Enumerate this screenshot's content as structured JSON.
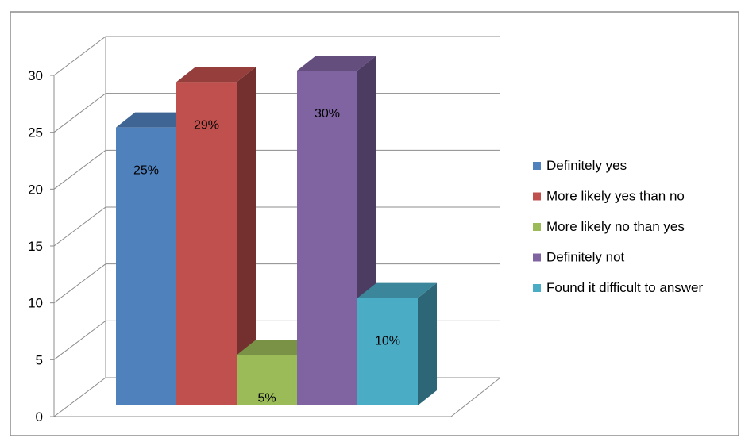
{
  "chart_data": {
    "type": "bar",
    "subtype": "3d-clustered-column",
    "title": "",
    "xlabel": "",
    "ylabel": "",
    "ylim": [
      0,
      30
    ],
    "yticks": [
      0,
      5,
      10,
      15,
      20,
      25,
      30
    ],
    "grid": true,
    "legend_position": "right",
    "series": [
      {
        "name": "Definitely yes",
        "value": 25,
        "label": "25%",
        "color": "#4F81BD"
      },
      {
        "name": "More likely yes than no",
        "value": 29,
        "label": "29%",
        "color": "#C0504D"
      },
      {
        "name": "More likely no than yes",
        "value": 5,
        "label": "5%",
        "color": "#9BBB59"
      },
      {
        "name": "Definitely not",
        "value": 30,
        "label": "30%",
        "color": "#8064A2"
      },
      {
        "name": "Found it difficult to answer",
        "value": 10,
        "label": "10%",
        "color": "#4BACC6"
      }
    ]
  }
}
